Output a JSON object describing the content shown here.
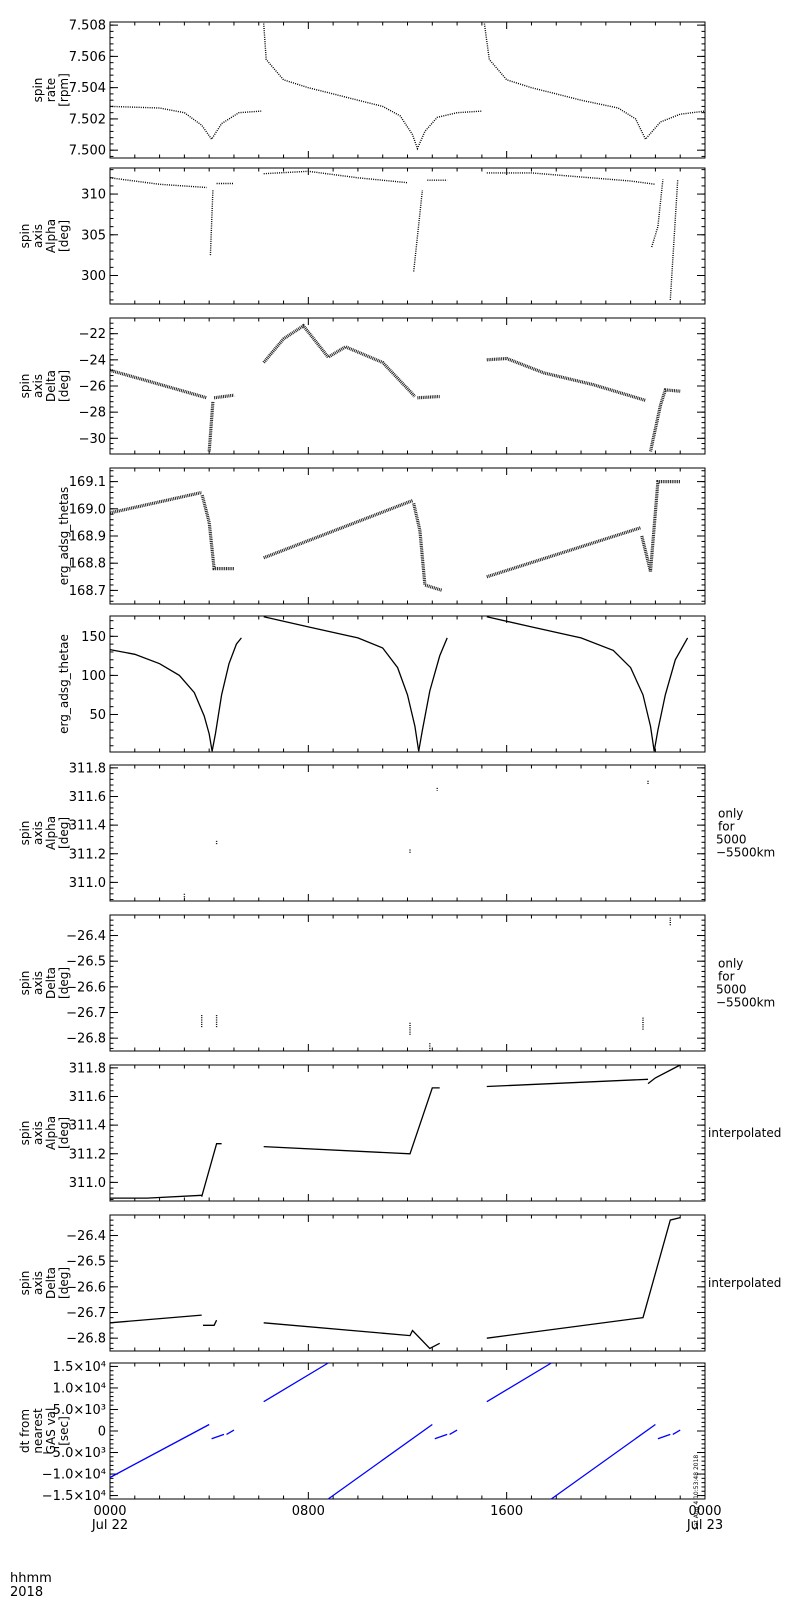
{
  "x_axis": {
    "row_labels": [
      "hhmm",
      "2018"
    ],
    "ticks": [
      {
        "time": 0,
        "top": "0000",
        "bottom": "Jul 22"
      },
      {
        "time": 8,
        "top": "0800",
        "bottom": ""
      },
      {
        "time": 16,
        "top": "1600",
        "bottom": ""
      },
      {
        "time": 24,
        "top": "0000",
        "bottom": "Jul 23"
      }
    ],
    "range_hours": [
      0,
      24
    ]
  },
  "stamp": "Sat Aug  4 10:53:48 2018",
  "colors": {
    "data": "#000000",
    "dt": "#0000ff",
    "frame": "#000000"
  },
  "chart_data": [
    {
      "type": "scatter",
      "ylabel": [
        "spin",
        "rate",
        "[rpm]"
      ],
      "ylim": [
        7.4995,
        7.5082
      ],
      "yticks": [
        7.5,
        7.502,
        7.504,
        7.506,
        7.508
      ],
      "ytick_labels": [
        "7.500",
        "7.502",
        "7.504",
        "7.506",
        "7.508"
      ],
      "side_note": [],
      "style": "dots",
      "segments": [
        [
          [
            0,
            7.5028
          ],
          [
            2,
            7.5027
          ],
          [
            3,
            7.5024
          ],
          [
            3.7,
            7.5016
          ],
          [
            4.1,
            7.5007
          ],
          [
            4.5,
            7.5017
          ],
          [
            5.2,
            7.5024
          ],
          [
            6.1,
            7.5025
          ]
        ],
        [
          [
            6.2,
            7.5081
          ],
          [
            6.3,
            7.5058
          ],
          [
            7,
            7.5045
          ],
          [
            8,
            7.504
          ],
          [
            9,
            7.5036
          ],
          [
            10,
            7.5032
          ],
          [
            11,
            7.5028
          ],
          [
            11.7,
            7.5022
          ],
          [
            12.2,
            7.501
          ],
          [
            12.4,
            7.5001
          ],
          [
            12.7,
            7.5012
          ],
          [
            13.2,
            7.5021
          ],
          [
            14,
            7.5024
          ],
          [
            15,
            7.5025
          ]
        ],
        [
          [
            15.1,
            7.5081
          ],
          [
            15.3,
            7.5058
          ],
          [
            16,
            7.5045
          ],
          [
            17,
            7.504
          ],
          [
            18,
            7.5036
          ],
          [
            19,
            7.5032
          ],
          [
            20.5,
            7.5027
          ],
          [
            21.2,
            7.502
          ],
          [
            21.6,
            7.5007
          ],
          [
            22.2,
            7.5018
          ],
          [
            23,
            7.5023
          ],
          [
            24,
            7.5025
          ]
        ]
      ]
    },
    {
      "type": "scatter",
      "ylabel": [
        "spin",
        "axis",
        "Alpha",
        "[deg]"
      ],
      "ylim": [
        296.5,
        313.2
      ],
      "yticks": [
        300,
        305,
        310
      ],
      "ytick_labels": [
        "300",
        "305",
        "310"
      ],
      "side_note": [],
      "style": "dots",
      "segments": [
        [
          [
            0,
            312.0
          ],
          [
            2,
            311.2
          ],
          [
            3.9,
            310.8
          ]
        ],
        [
          [
            4.05,
            302.5
          ],
          [
            4.15,
            310.5
          ]
        ],
        [
          [
            4.3,
            311.3
          ],
          [
            5.0,
            311.3
          ]
        ],
        [
          [
            6.2,
            312.5
          ],
          [
            8,
            312.8
          ],
          [
            10,
            312.0
          ],
          [
            12,
            311.4
          ]
        ],
        [
          [
            12.25,
            300.5
          ],
          [
            12.6,
            310.5
          ]
        ],
        [
          [
            12.8,
            311.7
          ],
          [
            13.6,
            311.7
          ]
        ],
        [
          [
            15.2,
            312.6
          ],
          [
            17,
            312.6
          ],
          [
            19,
            312.1
          ],
          [
            21,
            311.6
          ],
          [
            22.0,
            311.2
          ]
        ],
        [
          [
            21.85,
            303.5
          ],
          [
            22.1,
            306.0
          ],
          [
            22.3,
            311.8
          ]
        ],
        [
          [
            22.6,
            297.0
          ],
          [
            22.9,
            311.7
          ]
        ]
      ]
    },
    {
      "type": "scatter",
      "ylabel": [
        "spin",
        "axis",
        "Delta",
        "[deg]"
      ],
      "ylim": [
        -31.2,
        -20.8
      ],
      "yticks": [
        -30,
        -28,
        -26,
        -24,
        -22
      ],
      "ytick_labels": [
        "−30",
        "−28",
        "−26",
        "−24",
        "−22"
      ],
      "side_note": [],
      "style": "band",
      "segments": [
        [
          [
            0,
            -24.8
          ],
          [
            1.5,
            -25.6
          ],
          [
            3.9,
            -26.9
          ]
        ],
        [
          [
            4.0,
            -31.0
          ],
          [
            4.15,
            -27.2
          ]
        ],
        [
          [
            4.2,
            -26.9
          ],
          [
            5.0,
            -26.7
          ]
        ],
        [
          [
            6.2,
            -24.2
          ],
          [
            7.0,
            -22.4
          ],
          [
            7.8,
            -21.4
          ],
          [
            8.8,
            -23.8
          ],
          [
            9.5,
            -23.0
          ],
          [
            11,
            -24.2
          ],
          [
            12.3,
            -26.8
          ]
        ],
        [
          [
            12.4,
            -26.9
          ],
          [
            13.3,
            -26.8
          ]
        ],
        [
          [
            15.2,
            -24.0
          ],
          [
            16,
            -23.9
          ],
          [
            17.5,
            -25.0
          ],
          [
            19.5,
            -25.9
          ],
          [
            21.6,
            -27.1
          ]
        ],
        [
          [
            21.8,
            -31.0
          ],
          [
            22.2,
            -27.5
          ],
          [
            22.4,
            -26.3
          ],
          [
            23.0,
            -26.4
          ]
        ]
      ]
    },
    {
      "type": "scatter",
      "ylabel": [
        "erg_adsg_thetas"
      ],
      "ylim": [
        168.65,
        169.15
      ],
      "yticks": [
        168.7,
        168.8,
        168.9,
        169.0,
        169.1
      ],
      "ytick_labels": [
        "168.7",
        "168.8",
        "168.9",
        "169.0",
        "169.1"
      ],
      "side_note": [],
      "style": "band",
      "segments": [
        [
          [
            0,
            168.985
          ],
          [
            3.7,
            169.06
          ]
        ],
        [
          [
            3.72,
            169.05
          ],
          [
            4.0,
            168.95
          ],
          [
            4.2,
            168.78
          ],
          [
            5.0,
            168.78
          ]
        ],
        [
          [
            6.2,
            168.82
          ],
          [
            12.2,
            169.03
          ]
        ],
        [
          [
            12.25,
            169.02
          ],
          [
            12.5,
            168.92
          ],
          [
            12.7,
            168.72
          ],
          [
            13.4,
            168.7
          ]
        ],
        [
          [
            15.2,
            168.75
          ],
          [
            21.4,
            168.93
          ]
        ],
        [
          [
            21.45,
            168.9
          ],
          [
            21.8,
            168.77
          ],
          [
            22.1,
            169.1
          ],
          [
            23.0,
            169.1
          ]
        ]
      ]
    },
    {
      "type": "line",
      "ylabel": [
        "erg_adsg_thetae"
      ],
      "ylim": [
        2,
        176
      ],
      "yticks": [
        50,
        100,
        150
      ],
      "ytick_labels": [
        "50",
        "100",
        "150"
      ],
      "side_note": [],
      "style": "line",
      "segments": [
        [
          [
            0,
            133
          ],
          [
            1.0,
            127
          ],
          [
            2.0,
            115
          ],
          [
            2.8,
            100
          ],
          [
            3.4,
            78
          ],
          [
            3.8,
            48
          ],
          [
            4.0,
            25
          ],
          [
            4.12,
            3
          ]
        ],
        [
          [
            4.12,
            3
          ],
          [
            4.25,
            25
          ],
          [
            4.5,
            75
          ],
          [
            4.8,
            115
          ],
          [
            5.1,
            140
          ],
          [
            5.3,
            148
          ]
        ],
        [
          [
            6.2,
            175
          ],
          [
            8,
            162
          ],
          [
            10,
            148
          ],
          [
            11,
            135
          ],
          [
            11.6,
            110
          ],
          [
            12.0,
            75
          ],
          [
            12.3,
            35
          ],
          [
            12.45,
            3
          ]
        ],
        [
          [
            12.45,
            3
          ],
          [
            12.6,
            30
          ],
          [
            12.9,
            80
          ],
          [
            13.3,
            125
          ],
          [
            13.6,
            148
          ]
        ],
        [
          [
            15.2,
            175
          ],
          [
            17,
            162
          ],
          [
            19,
            148
          ],
          [
            20.3,
            132
          ],
          [
            21.0,
            110
          ],
          [
            21.5,
            75
          ],
          [
            21.8,
            35
          ],
          [
            21.95,
            3
          ]
        ],
        [
          [
            21.95,
            3
          ],
          [
            22.1,
            30
          ],
          [
            22.4,
            75
          ],
          [
            22.8,
            120
          ],
          [
            23.3,
            148
          ]
        ]
      ]
    },
    {
      "type": "scatter",
      "ylabel": [
        "spin",
        "axis",
        "Alpha",
        "[deg]"
      ],
      "ylim": [
        310.87,
        311.82
      ],
      "yticks": [
        311.0,
        311.2,
        311.4,
        311.6,
        311.8
      ],
      "ytick_labels": [
        "311.0",
        "311.2",
        "311.4",
        "311.6",
        "311.8"
      ],
      "side_note": [
        "only",
        "for",
        "5000",
        "−5500km"
      ],
      "style": "dots",
      "segments": [
        [
          [
            3.0,
            310.92
          ],
          [
            3.0,
            310.9
          ]
        ],
        [
          [
            4.3,
            311.29
          ],
          [
            4.3,
            311.26
          ]
        ],
        [
          [
            12.1,
            311.23
          ],
          [
            12.1,
            311.2
          ]
        ],
        [
          [
            13.2,
            311.66
          ],
          [
            13.2,
            311.64
          ]
        ],
        [
          [
            21.7,
            311.71
          ],
          [
            21.7,
            311.68
          ]
        ]
      ]
    },
    {
      "type": "scatter",
      "ylabel": [
        "spin",
        "axis",
        "Delta",
        "[deg]"
      ],
      "ylim": [
        -26.85,
        -26.32
      ],
      "yticks": [
        -26.8,
        -26.7,
        -26.6,
        -26.5,
        -26.4
      ],
      "ytick_labels": [
        "−26.8",
        "−26.7",
        "−26.6",
        "−26.5",
        "−26.4"
      ],
      "side_note": [
        "only",
        "for",
        "5000",
        "−5500km"
      ],
      "style": "dots",
      "segments": [
        [
          [
            3.7,
            -26.71
          ],
          [
            3.7,
            -26.76
          ]
        ],
        [
          [
            4.3,
            -26.71
          ],
          [
            4.3,
            -26.76
          ]
        ],
        [
          [
            12.1,
            -26.74
          ],
          [
            12.1,
            -26.79
          ]
        ],
        [
          [
            12.9,
            -26.82
          ],
          [
            12.9,
            -26.85
          ]
        ],
        [
          [
            21.5,
            -26.72
          ],
          [
            21.5,
            -26.77
          ]
        ],
        [
          [
            22.6,
            -26.33
          ],
          [
            22.6,
            -26.36
          ]
        ]
      ]
    },
    {
      "type": "line",
      "ylabel": [
        "spin",
        "axis",
        "Alpha",
        "[deg]"
      ],
      "ylim": [
        310.87,
        311.82
      ],
      "yticks": [
        311.0,
        311.2,
        311.4,
        311.6,
        311.8
      ],
      "ytick_labels": [
        "311.0",
        "311.2",
        "311.4",
        "311.6",
        "311.8"
      ],
      "side_note": [
        "interpolated"
      ],
      "style": "line",
      "segments": [
        [
          [
            0,
            310.89
          ],
          [
            1.5,
            310.89
          ],
          [
            3.7,
            310.91
          ]
        ],
        [
          [
            3.7,
            310.9
          ],
          [
            4.3,
            311.27
          ],
          [
            4.5,
            311.27
          ]
        ],
        [
          [
            6.2,
            311.25
          ],
          [
            12.1,
            311.2
          ],
          [
            13.0,
            311.66
          ],
          [
            13.3,
            311.66
          ]
        ],
        [
          [
            15.2,
            311.67
          ],
          [
            21.7,
            311.72
          ]
        ],
        [
          [
            21.7,
            311.69
          ],
          [
            22.0,
            311.73
          ],
          [
            23.0,
            311.82
          ]
        ]
      ]
    },
    {
      "type": "line",
      "ylabel": [
        "spin",
        "axis",
        "Delta",
        "[deg]"
      ],
      "ylim": [
        -26.85,
        -26.32
      ],
      "yticks": [
        -26.8,
        -26.7,
        -26.6,
        -26.5,
        -26.4
      ],
      "ytick_labels": [
        "−26.8",
        "−26.7",
        "−26.6",
        "−26.5",
        "−26.4"
      ],
      "side_note": [
        "interpolated"
      ],
      "style": "line",
      "segments": [
        [
          [
            0,
            -26.74
          ],
          [
            3.7,
            -26.71
          ]
        ],
        [
          [
            3.75,
            -26.75
          ],
          [
            4.2,
            -26.75
          ],
          [
            4.3,
            -26.73
          ]
        ],
        [
          [
            6.2,
            -26.74
          ],
          [
            12.1,
            -26.79
          ],
          [
            12.2,
            -26.77
          ],
          [
            12.9,
            -26.84
          ],
          [
            13.3,
            -26.82
          ]
        ],
        [
          [
            15.2,
            -26.8
          ],
          [
            21.5,
            -26.72
          ],
          [
            22.6,
            -26.34
          ],
          [
            23.0,
            -26.33
          ]
        ]
      ]
    },
    {
      "type": "line",
      "ylabel": [
        "dt from",
        "nearest",
        "GAS val",
        "[sec]"
      ],
      "ylim": [
        -15800,
        15800
      ],
      "yticks": [
        -15000,
        -10000,
        -5000,
        0,
        5000,
        10000,
        15000
      ],
      "ytick_labels": [
        "−1.5×10⁴",
        "−1.0×10⁴",
        "−5.0×10³",
        "0",
        "5.0×10³",
        "1.0×10⁴",
        "1.5×10⁴"
      ],
      "side_note": [],
      "style": "line-blue",
      "segments": [
        [
          [
            0,
            -10800
          ],
          [
            4.0,
            1500
          ]
        ],
        [
          [
            4.1,
            -1800
          ],
          [
            4.6,
            -800
          ]
        ],
        [
          [
            4.7,
            -800
          ],
          [
            5.0,
            200
          ]
        ],
        [
          [
            6.2,
            6800
          ],
          [
            8.8,
            15800
          ]
        ],
        [
          [
            8.8,
            -15800
          ],
          [
            13.0,
            1500
          ]
        ],
        [
          [
            13.1,
            -1800
          ],
          [
            13.6,
            -800
          ]
        ],
        [
          [
            13.7,
            -800
          ],
          [
            14.0,
            200
          ]
        ],
        [
          [
            15.2,
            6800
          ],
          [
            17.8,
            15800
          ]
        ],
        [
          [
            17.8,
            -15800
          ],
          [
            22.0,
            1500
          ]
        ],
        [
          [
            22.1,
            -1800
          ],
          [
            22.6,
            -800
          ]
        ],
        [
          [
            22.7,
            -800
          ],
          [
            23.0,
            200
          ]
        ]
      ]
    }
  ]
}
